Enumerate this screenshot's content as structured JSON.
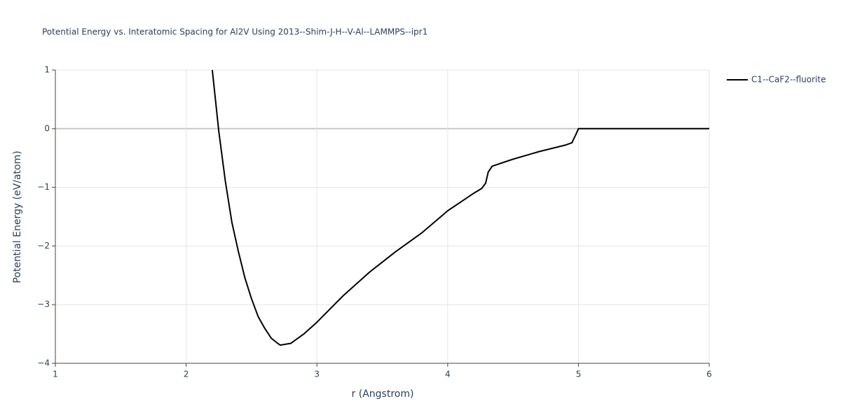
{
  "chart_data": {
    "type": "line",
    "title": "Potential Energy vs. Interatomic Spacing for Al2V Using 2013--Shim-J-H--V-Al--LAMMPS--ipr1",
    "x_label": "r (Angstrom)",
    "y_label": "Potential Energy (eV/atom)",
    "x": [
      2.2,
      2.25,
      2.3,
      2.35,
      2.4,
      2.45,
      2.5,
      2.55,
      2.6,
      2.65,
      2.7,
      2.72,
      2.8,
      2.9,
      3.0,
      3.2,
      3.4,
      3.6,
      3.8,
      4.0,
      4.1,
      4.2,
      4.26,
      4.29,
      4.31,
      4.34,
      4.5,
      4.7,
      4.9,
      4.95,
      4.98,
      5.0,
      6.0
    ],
    "series": [
      {
        "name": "C1--CaF2--fluorite",
        "color": "#000000",
        "values": [
          1.0,
          -0.05,
          -0.9,
          -1.6,
          -2.1,
          -2.55,
          -2.9,
          -3.2,
          -3.4,
          -3.57,
          -3.66,
          -3.69,
          -3.66,
          -3.5,
          -3.3,
          -2.85,
          -2.45,
          -2.1,
          -1.78,
          -1.4,
          -1.25,
          -1.1,
          -1.02,
          -0.93,
          -0.74,
          -0.64,
          -0.52,
          -0.39,
          -0.28,
          -0.24,
          -0.1,
          0,
          0
        ]
      }
    ],
    "xlim": [
      1,
      6
    ],
    "ylim": [
      -4,
      1
    ],
    "xticks": [
      1,
      2,
      3,
      4,
      5,
      6
    ],
    "yticks": [
      1,
      0,
      {
        "value": -1,
        "label": "−1"
      },
      {
        "value": -2,
        "label": "−2"
      },
      {
        "value": -3,
        "label": "−3"
      },
      {
        "value": -4,
        "label": "−4"
      }
    ],
    "grid": true
  }
}
